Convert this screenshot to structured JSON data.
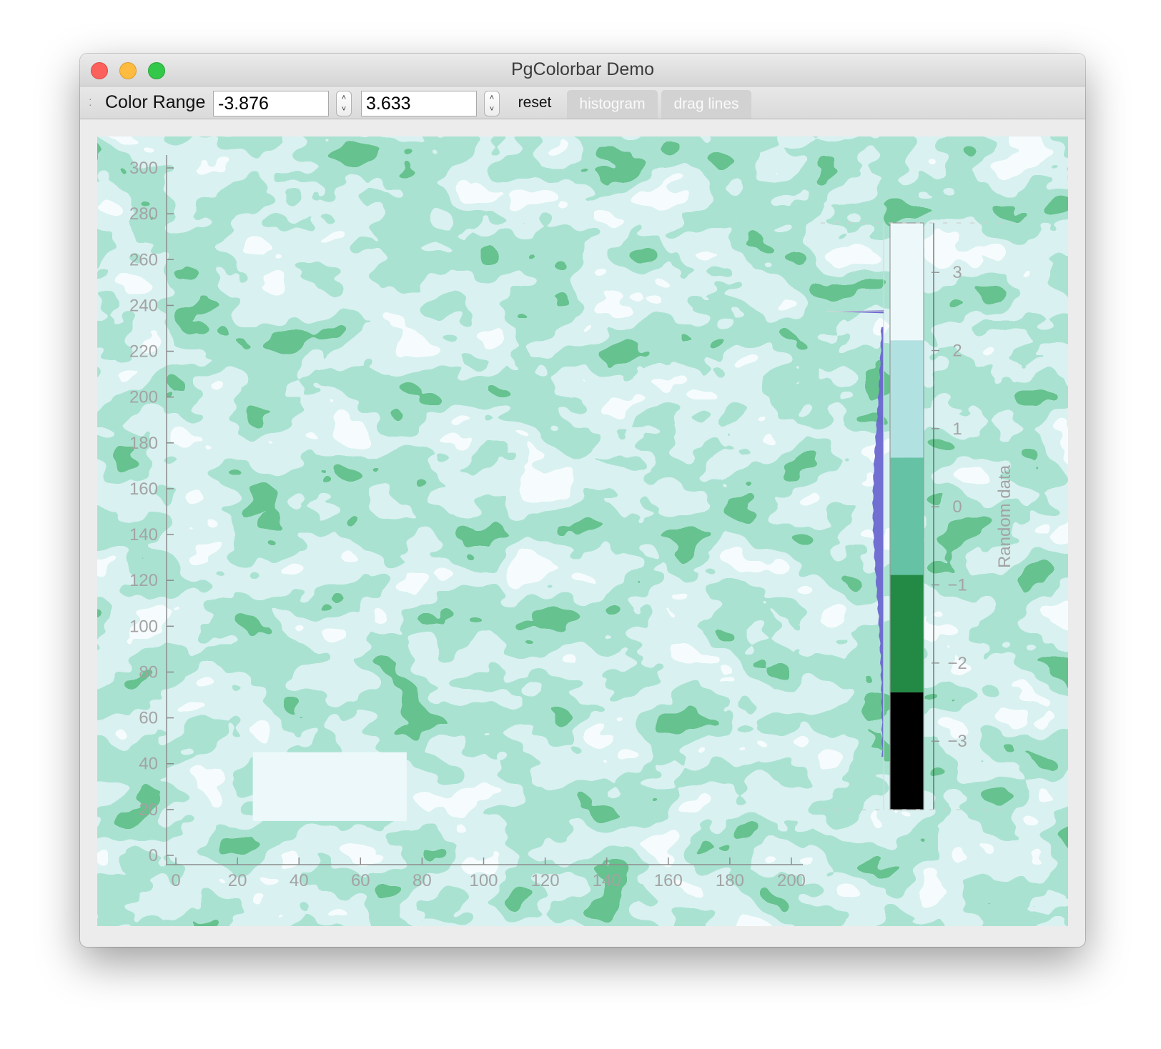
{
  "window": {
    "title": "PgColorbar Demo"
  },
  "toolbar": {
    "color_range_label": "Color Range",
    "min_value": "-3.876",
    "max_value": "3.633",
    "reset_label": "reset",
    "histogram_label": "histogram",
    "drag_lines_label": "drag lines"
  },
  "colors": {
    "level_1": "#000000",
    "level_2": "#238a45",
    "level_3": "#66c2a4",
    "level_4": "#b2e1e2",
    "level_5": "#edf8fb",
    "histogram": "#6b67d0"
  },
  "chart_data": [
    {
      "type": "heatmap",
      "title": "",
      "xlabel": "",
      "ylabel": "",
      "x_ticks": [
        0,
        20,
        40,
        60,
        80,
        100,
        120,
        140,
        160,
        180,
        200
      ],
      "y_ticks": [
        0,
        20,
        40,
        60,
        80,
        100,
        120,
        140,
        160,
        180,
        200,
        220,
        240,
        260,
        280,
        300
      ],
      "xlim": [
        0,
        200
      ],
      "ylim": [
        0,
        300
      ],
      "grid": false,
      "value_range": [
        -3.876,
        3.633
      ],
      "data_summary": "smooth random noise field quantized into 5 color levels",
      "annotations": [
        {
          "shape": "rectangle",
          "x": [
            25,
            75
          ],
          "y": [
            15,
            45
          ],
          "color": "#edf8fb"
        }
      ]
    },
    {
      "type": "colorbar",
      "label": "Random data",
      "ticks": [
        3,
        2,
        1,
        0,
        -1,
        -2,
        -3
      ],
      "range": [
        -3.876,
        3.633
      ],
      "levels": [
        {
          "from": -3.876,
          "to": -2.374,
          "color": "#000000"
        },
        {
          "from": -2.374,
          "to": -0.872,
          "color": "#238a45"
        },
        {
          "from": -0.872,
          "to": 0.63,
          "color": "#66c2a4"
        },
        {
          "from": 0.63,
          "to": 2.131,
          "color": "#b2e1e2"
        },
        {
          "from": 2.131,
          "to": 3.633,
          "color": "#edf8fb"
        }
      ],
      "histogram": {
        "color": "#6b67d0",
        "spike_at": 2.5,
        "shape": "approximately normal centered near 0"
      }
    }
  ]
}
